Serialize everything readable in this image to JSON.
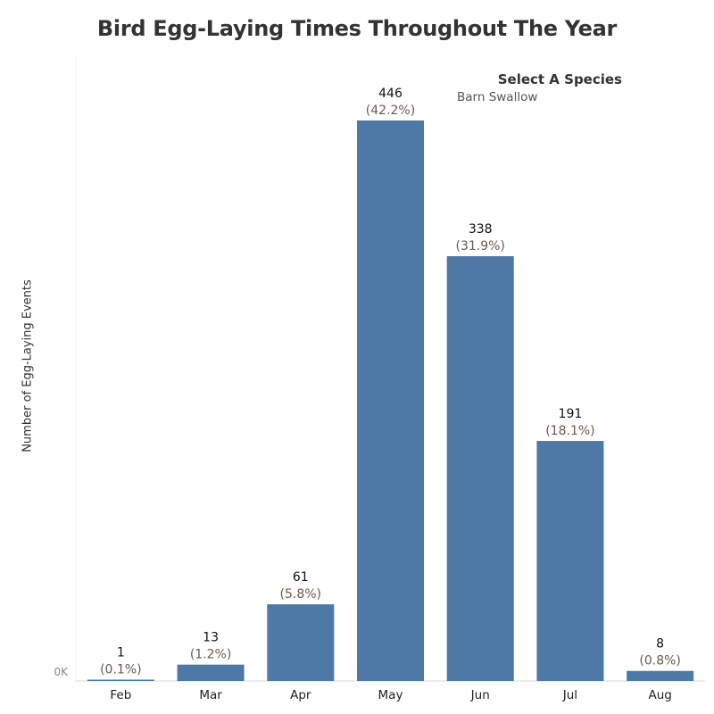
{
  "title": "Bird Egg-Laying Times Throughout The Year",
  "filter": {
    "label": "Select A Species",
    "value": "Barn Swallow"
  },
  "chart_data": {
    "type": "bar",
    "title": "Bird Egg-Laying Times Throughout The Year",
    "xlabel": "",
    "ylabel": "Number of Egg-Laying Events",
    "categories": [
      "Feb",
      "Mar",
      "Apr",
      "May",
      "Jun",
      "Jul",
      "Aug"
    ],
    "values": [
      1,
      13,
      61,
      446,
      338,
      191,
      8
    ],
    "percent_labels": [
      "(0.1%)",
      "(1.2%)",
      "(5.8%)",
      "(42.2%)",
      "(31.9%)",
      "(18.1%)",
      "(0.8%)"
    ],
    "y_tick_labels": [
      "0K"
    ],
    "ylim": [
      0,
      500
    ],
    "bar_color": "#4e79a7",
    "grid": false
  }
}
